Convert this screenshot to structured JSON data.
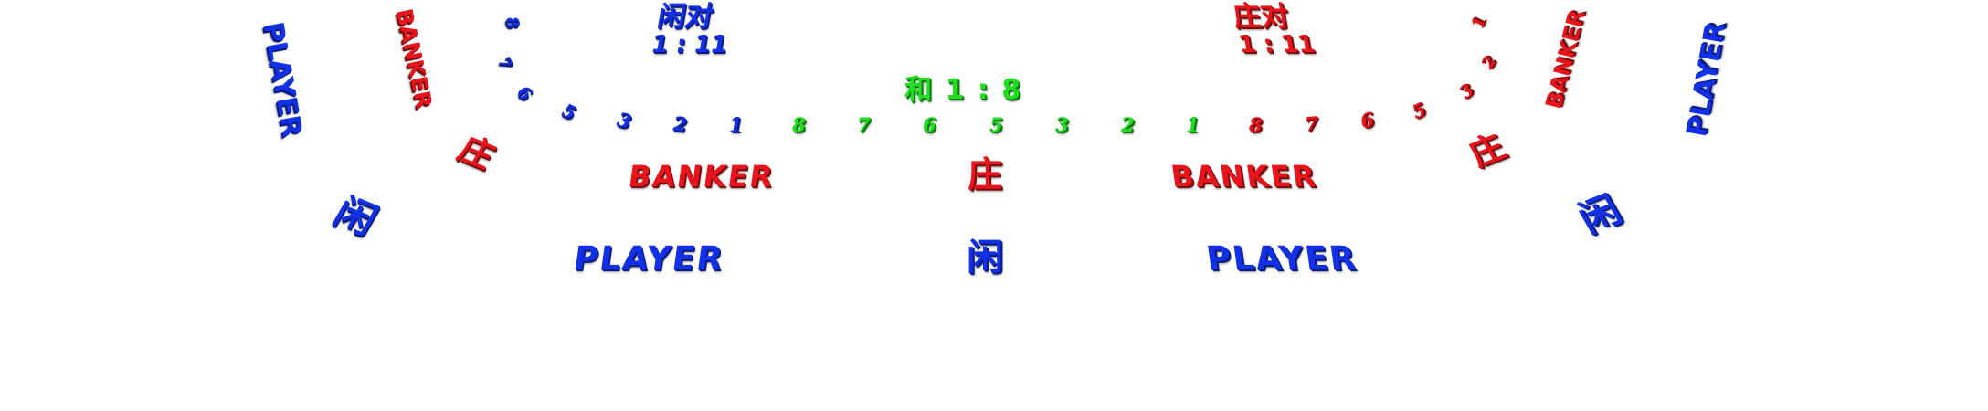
{
  "text_blue": "#1230e6",
  "text_red": "#e8141c",
  "text_green": "#22dd22",
  "player_pair": {
    "label": "闲对",
    "odds": "1 : 11"
  },
  "banker_pair": {
    "label": "庄对",
    "odds": "1 : 11"
  },
  "tie": {
    "label": "和 1 : 8"
  },
  "side_labels": {
    "left_player": "PLAYER",
    "left_banker": "BANKER",
    "right_banker": "BANKER",
    "right_player": "PLAYER"
  },
  "center_row": {
    "banker_left": "BANKER",
    "banker_cn": "庄",
    "banker_right": "BANKER",
    "banker_cn_left_arc": "庄",
    "banker_cn_right_arc": "庄"
  },
  "bottom_row": {
    "player_left": "PLAYER",
    "player_cn": "闲",
    "player_right": "PLAYER",
    "player_cn_left_arc": "闲",
    "player_cn_right_arc": "闲"
  },
  "seat_numbers": {
    "blue_arc": [
      "8",
      "7",
      "6",
      "5",
      "3",
      "2",
      "1"
    ],
    "green_row": [
      "8",
      "7",
      "6",
      "5",
      "3",
      "2",
      "1"
    ],
    "red_arc": [
      "8",
      "7",
      "6",
      "5",
      "3",
      "2",
      "1"
    ]
  }
}
